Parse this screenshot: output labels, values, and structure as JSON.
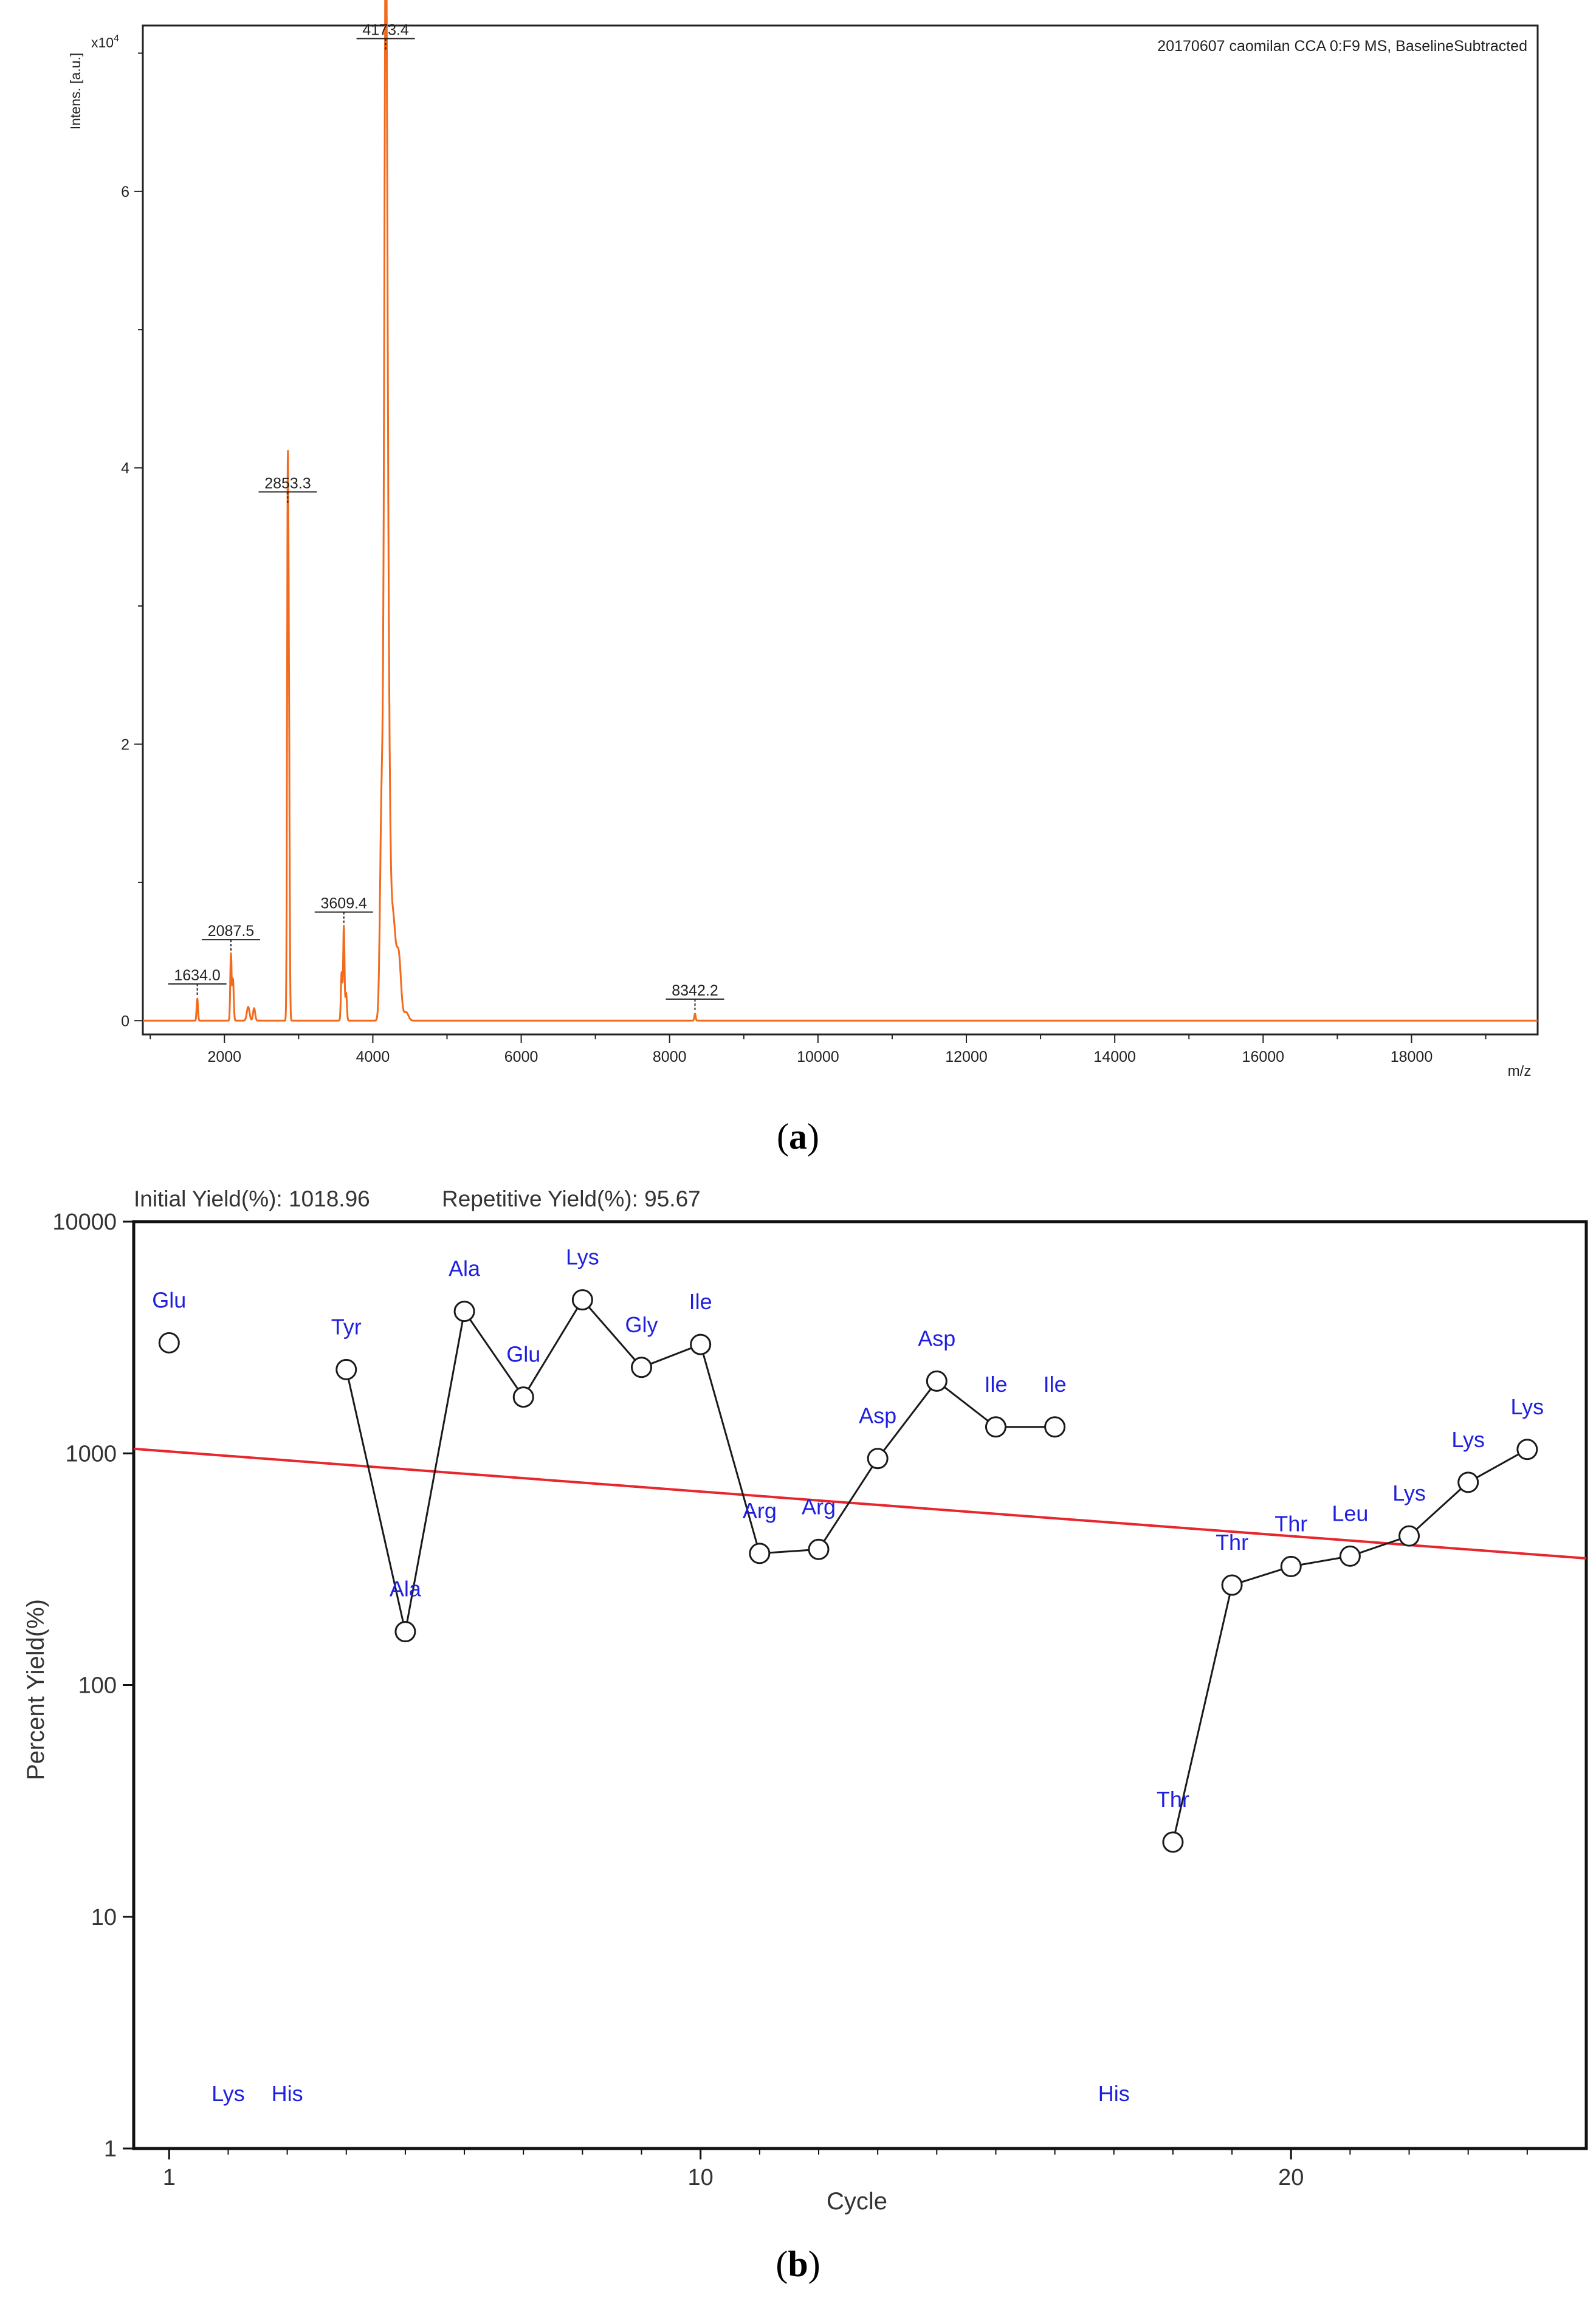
{
  "panel_a": {
    "caption_open": "(",
    "caption_letter": "a",
    "caption_close": ")"
  },
  "panel_b": {
    "caption_open": "(",
    "caption_letter": "b",
    "caption_close": ")"
  },
  "colors": {
    "spectrum": "#F26B1D",
    "residue_label": "#1F1FE0",
    "regression_line": "#E8262D",
    "series_line": "#1A1A1A"
  },
  "chart_data": [
    {
      "type": "line",
      "title": "20170607 caomilan CCA 0:F9 MS, BaselineSubtracted",
      "xlabel": "m/z",
      "ylabel": "Intens. [a.u.]",
      "y_multiplier": "x10",
      "y_multiplier_exp": "4",
      "xlim": [
        900,
        19700
      ],
      "ylim": [
        -0.1,
        7.2
      ],
      "x_ticks": [
        2000,
        4000,
        6000,
        8000,
        10000,
        12000,
        14000,
        16000,
        18000
      ],
      "x_tick_labels": [
        "2000",
        "4000",
        "6000",
        "8000",
        "10000",
        "12000",
        "14000",
        "16000",
        "18000"
      ],
      "y_ticks": [
        0,
        2,
        4,
        6
      ],
      "y_tick_labels": [
        "0",
        "2",
        "4",
        "6"
      ],
      "peaks": [
        {
          "x": 1634.0,
          "y": 0.16,
          "label": "1634.0"
        },
        {
          "x": 2087.5,
          "y": 0.48,
          "label": "2087.5"
        },
        {
          "x": 2853.3,
          "y": 3.72,
          "label": "2853.3"
        },
        {
          "x": 3609.4,
          "y": 0.68,
          "label": "3609.4"
        },
        {
          "x": 4173.4,
          "y": 7.0,
          "label": "4173.4"
        },
        {
          "x": 8342.2,
          "y": 0.05,
          "label": "8342.2"
        }
      ]
    },
    {
      "type": "scatter",
      "subtitle_left": "Initial Yield(%): 1018.96",
      "subtitle_right": "Repetitive Yield(%): 95.67",
      "xlabel": "Cycle",
      "ylabel": "Percent Yield(%)",
      "yscale": "log",
      "xlim": [
        0.4,
        25
      ],
      "ylim": [
        1,
        10000
      ],
      "x_ticks": [
        1,
        10,
        20
      ],
      "x_tick_labels": [
        "1",
        "10",
        "20"
      ],
      "y_ticks": [
        1,
        10,
        100,
        1000,
        10000
      ],
      "y_tick_labels": [
        "1",
        "10",
        "100",
        "1000",
        "10000"
      ],
      "regression": {
        "initial_yield": 1018.96,
        "repetitive_yield": 95.67
      },
      "points": [
        {
          "cycle": 1,
          "residue": "Glu",
          "yield": 3000
        },
        {
          "cycle": 4,
          "residue": "Tyr",
          "yield": 2300
        },
        {
          "cycle": 5,
          "residue": "Ala",
          "yield": 170
        },
        {
          "cycle": 6,
          "residue": "Ala",
          "yield": 4100
        },
        {
          "cycle": 7,
          "residue": "Glu",
          "yield": 1750
        },
        {
          "cycle": 8,
          "residue": "Lys",
          "yield": 4600
        },
        {
          "cycle": 9,
          "residue": "Gly",
          "yield": 2350
        },
        {
          "cycle": 10,
          "residue": "Ile",
          "yield": 2950
        },
        {
          "cycle": 11,
          "residue": "Arg",
          "yield": 370
        },
        {
          "cycle": 12,
          "residue": "Arg",
          "yield": 385
        },
        {
          "cycle": 13,
          "residue": "Asp",
          "yield": 950
        },
        {
          "cycle": 14,
          "residue": "Asp",
          "yield": 2050
        },
        {
          "cycle": 15,
          "residue": "Ile",
          "yield": 1300
        },
        {
          "cycle": 16,
          "residue": "Ile",
          "yield": 1300
        },
        {
          "cycle": 18,
          "residue": "Thr",
          "yield": 21
        },
        {
          "cycle": 19,
          "residue": "Thr",
          "yield": 270
        },
        {
          "cycle": 20,
          "residue": "Thr",
          "yield": 325
        },
        {
          "cycle": 21,
          "residue": "Leu",
          "yield": 360
        },
        {
          "cycle": 22,
          "residue": "Lys",
          "yield": 440
        },
        {
          "cycle": 23,
          "residue": "Lys",
          "yield": 750
        },
        {
          "cycle": 24,
          "residue": "Lys",
          "yield": 1040
        }
      ],
      "connected_segments": [
        [
          4,
          16
        ],
        [
          18,
          24
        ]
      ],
      "bottom_labels": [
        {
          "cycle": 2,
          "text": "Lys"
        },
        {
          "cycle": 3,
          "text": "His"
        },
        {
          "cycle": 17,
          "text": "His"
        }
      ]
    }
  ]
}
